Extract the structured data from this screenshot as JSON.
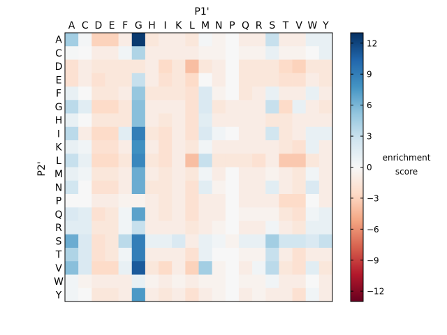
{
  "chart_data": {
    "type": "heatmap",
    "xlabel": "P1'",
    "ylabel": "P2'",
    "x_categories": [
      "A",
      "C",
      "D",
      "E",
      "F",
      "G",
      "H",
      "I",
      "K",
      "L",
      "M",
      "N",
      "P",
      "Q",
      "R",
      "S",
      "T",
      "V",
      "W",
      "Y"
    ],
    "y_categories": [
      "A",
      "C",
      "D",
      "E",
      "F",
      "G",
      "H",
      "I",
      "K",
      "L",
      "M",
      "N",
      "P",
      "Q",
      "R",
      "S",
      "T",
      "V",
      "W",
      "Y"
    ],
    "colorbar": {
      "label_line1": "enrichment",
      "label_line2": "score",
      "min": -13,
      "max": 13,
      "ticks": [
        12,
        9,
        6,
        3,
        0,
        -3,
        -6,
        -9,
        -12
      ],
      "colormap": "RdBu diverging (red negative, blue positive)"
    },
    "values": [
      [
        4.5,
        0.3,
        -3.0,
        -3.0,
        -1.0,
        12.5,
        -1.5,
        -1.0,
        -1.0,
        -1.5,
        0.3,
        -0.5,
        0.0,
        -1.0,
        -1.0,
        3.0,
        -1.0,
        -1.0,
        1.0,
        1.0
      ],
      [
        0.2,
        0.0,
        -1.0,
        -1.0,
        0.5,
        4.0,
        -1.0,
        -1.0,
        -1.0,
        -1.0,
        -0.5,
        -0.5,
        0.0,
        -0.5,
        -0.5,
        1.0,
        -0.5,
        -0.5,
        0.0,
        1.0
      ],
      [
        -2.0,
        -1.0,
        -1.5,
        -1.5,
        -1.5,
        -1.5,
        -1.0,
        -2.5,
        -1.5,
        -4.0,
        -1.5,
        -1.0,
        0.0,
        -1.5,
        -1.5,
        -1.5,
        -2.5,
        -3.0,
        -1.5,
        -1.5
      ],
      [
        -2.0,
        -1.0,
        -2.0,
        -1.5,
        -1.5,
        3.0,
        -1.0,
        -2.0,
        -1.5,
        -2.5,
        0.0,
        -1.0,
        0.0,
        -1.5,
        -1.5,
        -1.5,
        -2.0,
        -2.0,
        -1.0,
        -1.5
      ],
      [
        1.0,
        0.0,
        -1.5,
        -1.5,
        -1.0,
        5.0,
        -1.5,
        -1.5,
        -1.5,
        -2.0,
        2.0,
        -0.5,
        0.0,
        -1.5,
        -1.0,
        1.0,
        -1.0,
        -1.0,
        1.0,
        -1.0
      ],
      [
        3.5,
        1.5,
        -2.5,
        -2.5,
        -1.5,
        5.5,
        -1.0,
        -1.0,
        -1.0,
        -2.0,
        2.0,
        -1.5,
        -1.0,
        -1.0,
        -1.0,
        3.0,
        -2.5,
        1.0,
        -1.0,
        -1.5
      ],
      [
        1.0,
        0.0,
        -1.5,
        -1.5,
        -1.5,
        5.5,
        -1.0,
        -1.5,
        -1.0,
        -2.0,
        1.5,
        -1.0,
        -1.0,
        -1.0,
        -1.0,
        -1.5,
        -1.5,
        -1.0,
        -1.0,
        -1.0
      ],
      [
        3.5,
        -1.0,
        -2.5,
        -2.5,
        1.5,
        9.0,
        -1.5,
        -2.0,
        -1.0,
        -2.0,
        2.0,
        0.5,
        0.0,
        -1.0,
        -1.0,
        2.5,
        -1.5,
        -1.0,
        1.0,
        1.0
      ],
      [
        1.0,
        0.5,
        -2.0,
        -2.0,
        -1.0,
        8.0,
        -1.0,
        -2.0,
        -1.0,
        -1.5,
        0.5,
        -1.0,
        -1.0,
        -1.0,
        -1.0,
        -1.0,
        -1.5,
        -2.0,
        1.0,
        -1.0
      ],
      [
        3.0,
        1.0,
        -2.5,
        -2.5,
        -1.5,
        8.5,
        -1.5,
        -2.0,
        -1.0,
        -4.0,
        3.0,
        -1.5,
        -1.5,
        -1.5,
        -2.0,
        -1.0,
        -3.5,
        -3.5,
        -1.5,
        -1.0
      ],
      [
        1.0,
        0.5,
        -1.5,
        -1.5,
        -1.0,
        6.5,
        -1.0,
        -1.5,
        -1.0,
        -1.5,
        0.5,
        -1.0,
        0.0,
        -1.0,
        -1.0,
        -0.5,
        -1.0,
        -1.5,
        0.5,
        -1.0
      ],
      [
        2.5,
        0.0,
        -2.0,
        -2.0,
        -1.0,
        6.5,
        -1.5,
        -1.5,
        -1.0,
        -2.0,
        1.5,
        -0.5,
        0.0,
        -1.0,
        -1.0,
        1.5,
        -1.0,
        -1.5,
        2.0,
        -1.0
      ],
      [
        0.0,
        0.0,
        -1.0,
        -1.0,
        -0.5,
        -0.5,
        -1.0,
        -1.5,
        -1.0,
        -2.0,
        -1.0,
        -1.0,
        0.0,
        -1.0,
        -1.0,
        -1.0,
        -2.5,
        -2.5,
        0.0,
        -1.0
      ],
      [
        2.0,
        1.5,
        -2.0,
        -1.5,
        0.5,
        7.0,
        -1.0,
        -1.5,
        -1.0,
        -2.0,
        -1.0,
        -1.0,
        0.0,
        -0.5,
        -0.5,
        -0.5,
        -1.5,
        -2.0,
        0.5,
        1.0
      ],
      [
        1.5,
        1.5,
        -1.5,
        -1.5,
        0.5,
        3.0,
        -1.0,
        -1.0,
        -1.0,
        -1.5,
        -1.0,
        -0.5,
        0.0,
        -1.0,
        -1.0,
        0.5,
        -1.0,
        -1.5,
        1.0,
        1.0
      ],
      [
        6.5,
        2.0,
        -2.0,
        -1.5,
        3.5,
        9.0,
        1.0,
        1.0,
        2.0,
        -1.0,
        1.0,
        0.5,
        -0.5,
        1.0,
        1.0,
        4.5,
        2.5,
        2.5,
        2.0,
        3.0
      ],
      [
        4.0,
        2.0,
        -2.0,
        -1.5,
        0.5,
        9.0,
        -1.0,
        -1.0,
        -1.0,
        -2.0,
        1.0,
        0.0,
        0.0,
        -0.5,
        -0.5,
        3.0,
        -1.0,
        -2.0,
        -1.0,
        -1.0
      ],
      [
        5.5,
        2.0,
        -2.5,
        -2.5,
        1.0,
        11.0,
        -1.5,
        -2.5,
        -1.0,
        -3.0,
        4.5,
        -0.5,
        0.0,
        -1.0,
        0.5,
        3.5,
        -1.5,
        -2.0,
        1.5,
        -1.5
      ],
      [
        0.5,
        -0.5,
        -1.0,
        -1.0,
        -1.0,
        1.0,
        -0.5,
        -1.0,
        -0.5,
        -1.0,
        -0.5,
        -0.5,
        0.0,
        -0.5,
        -0.5,
        0.5,
        -1.0,
        -1.0,
        0.0,
        -1.0
      ],
      [
        0.5,
        0.0,
        -1.5,
        -1.5,
        -1.0,
        7.5,
        -1.0,
        -1.5,
        -1.0,
        -2.0,
        -1.0,
        -0.5,
        0.0,
        -1.0,
        -0.5,
        -1.0,
        -1.0,
        -2.0,
        0.5,
        -1.0
      ]
    ]
  }
}
